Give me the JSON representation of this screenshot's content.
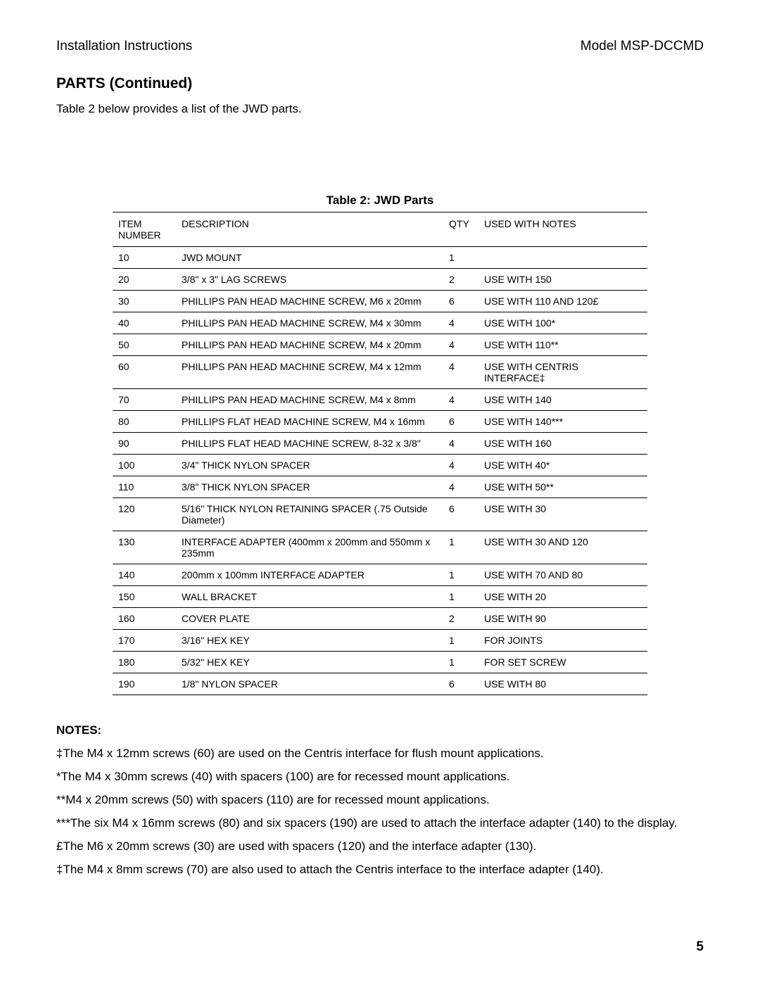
{
  "header": {
    "left": "Installation Instructions",
    "right": "Model MSP-DCCMD"
  },
  "section_title": "PARTS (Continued)",
  "intro": "Table 2 below provides a list of the JWD parts.",
  "table": {
    "caption": "Table 2: JWD Parts",
    "columns": {
      "item": "ITEM NUMBER",
      "desc": "DESCRIPTION",
      "qty": "QTY",
      "notes": "USED WITH NOTES"
    },
    "rows": [
      {
        "item": "10",
        "desc": "JWD MOUNT",
        "qty": "1",
        "notes": ""
      },
      {
        "item": "20",
        "desc": "3/8\" x 3\" LAG SCREWS",
        "qty": "2",
        "notes": "USE WITH 150"
      },
      {
        "item": "30",
        "desc": "PHILLIPS PAN HEAD MACHINE SCREW, M6 x 20mm",
        "qty": "6",
        "notes": "USE WITH 110 AND 120£"
      },
      {
        "item": "40",
        "desc": "PHILLIPS PAN HEAD MACHINE SCREW, M4 x 30mm",
        "qty": "4",
        "notes": "USE WITH 100*"
      },
      {
        "item": "50",
        "desc": "PHILLIPS PAN HEAD MACHINE SCREW, M4 x 20mm",
        "qty": "4",
        "notes": "USE WITH 110**"
      },
      {
        "item": "60",
        "desc": "PHILLIPS PAN HEAD MACHINE SCREW, M4 x 12mm",
        "qty": "4",
        "notes": "USE WITH CENTRIS INTERFACE‡"
      },
      {
        "item": "70",
        "desc": "PHILLIPS PAN HEAD MACHINE SCREW, M4 x 8mm",
        "qty": "4",
        "notes": "USE WITH 140"
      },
      {
        "item": "80",
        "desc": "PHILLIPS FLAT HEAD MACHINE SCREW, M4 x 16mm",
        "qty": "6",
        "notes": "USE WITH 140***"
      },
      {
        "item": "90",
        "desc": "PHILLIPS FLAT HEAD MACHINE SCREW, 8-32 x 3/8\"",
        "qty": "4",
        "notes": "USE WITH 160"
      },
      {
        "item": "100",
        "desc": "3/4\" THICK NYLON SPACER",
        "qty": "4",
        "notes": "USE WITH 40*"
      },
      {
        "item": "110",
        "desc": "3/8\" THICK NYLON SPACER",
        "qty": "4",
        "notes": "USE WITH 50**"
      },
      {
        "item": "120",
        "desc": "5/16\" THICK NYLON RETAINING SPACER (.75 Outside Diameter)",
        "qty": "6",
        "notes": "USE WITH 30"
      },
      {
        "item": "130",
        "desc": "INTERFACE ADAPTER (400mm x 200mm and 550mm x 235mm",
        "qty": "1",
        "notes": "USE WITH 30 AND 120"
      },
      {
        "item": "140",
        "desc": "200mm x 100mm INTERFACE ADAPTER",
        "qty": "1",
        "notes": "USE WITH 70 AND 80"
      },
      {
        "item": "150",
        "desc": "WALL BRACKET",
        "qty": "1",
        "notes": "USE WITH 20"
      },
      {
        "item": "160",
        "desc": "COVER PLATE",
        "qty": "2",
        "notes": "USE WITH 90"
      },
      {
        "item": "170",
        "desc": "3/16\" HEX KEY",
        "qty": "1",
        "notes": "FOR JOINTS"
      },
      {
        "item": "180",
        "desc": "5/32\" HEX KEY",
        "qty": "1",
        "notes": "FOR SET SCREW"
      },
      {
        "item": "190",
        "desc": "1/8\" NYLON SPACER",
        "qty": "6",
        "notes": "USE WITH 80"
      }
    ]
  },
  "notes": {
    "heading": "NOTES:",
    "lines": [
      "‡The M4 x 12mm screws (60) are used on the Centris interface for flush mount applications.",
      "*The M4 x 30mm screws (40) with spacers (100) are for recessed mount applications.",
      "**M4 x 20mm screws (50) with spacers (110) are for recessed mount applications.",
      "***The six M4 x 16mm screws (80) and six spacers (190) are used to attach the interface adapter (140) to the display.",
      "£The M6 x 20mm screws (30) are used with spacers (120) and the interface adapter (130).",
      "‡The M4 x 8mm screws (70) are also used to attach the Centris interface to the interface adapter (140)."
    ]
  },
  "page_number": "5"
}
